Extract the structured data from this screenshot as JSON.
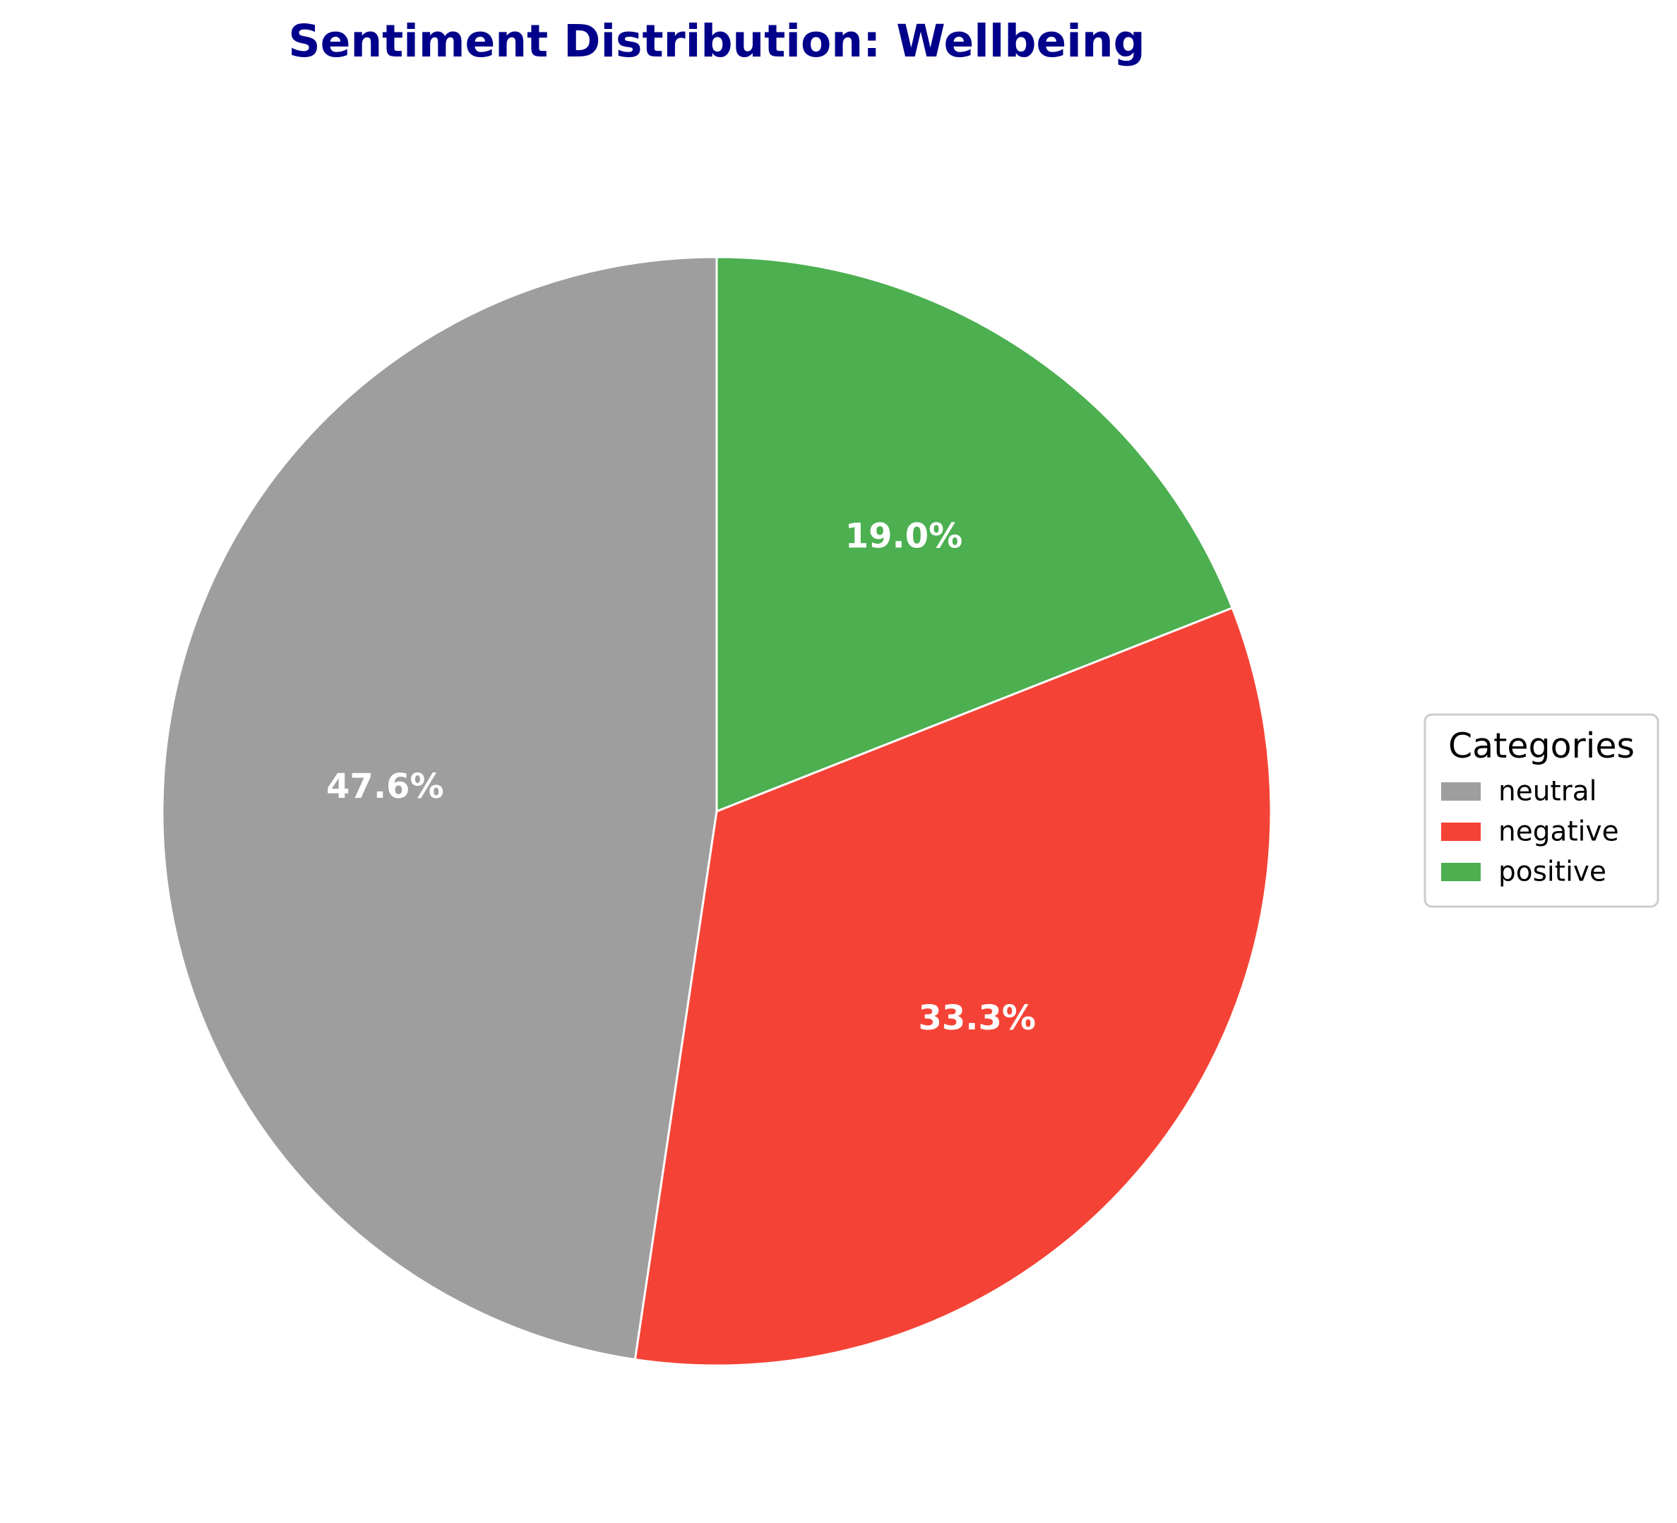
{
  "chart_data": {
    "type": "pie",
    "title": "Sentiment Distribution: Wellbeing",
    "categories": [
      "neutral",
      "negative",
      "positive"
    ],
    "values": [
      47.6,
      33.3,
      19.0
    ],
    "labels": [
      "47.6%",
      "33.3%",
      "19.0%"
    ],
    "colors": [
      "#9e9e9e",
      "#f44336",
      "#4caf50"
    ],
    "start_angle_deg": 90,
    "direction": "counterclockwise",
    "legend": {
      "title": "Categories",
      "placement": "right",
      "entries": [
        "neutral",
        "negative",
        "positive"
      ]
    }
  }
}
